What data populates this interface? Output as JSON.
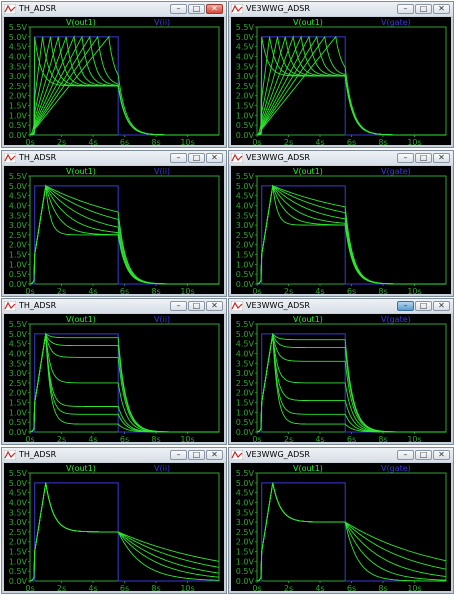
{
  "windows": [
    {
      "title": "TH_ADSR",
      "trace_a": "V(out1)",
      "trace_b": "V(ii)",
      "active": true
    },
    {
      "title": "VE3WWG_ADSR",
      "trace_a": "V(out1)",
      "trace_b": "V(gate)",
      "active": false
    },
    {
      "title": "TH_ADSR",
      "trace_a": "V(out1)",
      "trace_b": "V(ii)",
      "active": false
    },
    {
      "title": "VE3WWG_ADSR",
      "trace_a": "V(out1)",
      "trace_b": "V(gate)",
      "active": false
    },
    {
      "title": "TH_ADSR",
      "trace_a": "V(out1)",
      "trace_b": "V(ii)",
      "active": false
    },
    {
      "title": "VE3WWG_ADSR",
      "trace_a": "V(out1)",
      "trace_b": "V(gate)",
      "active": false,
      "min_highlight": true
    },
    {
      "title": "TH_ADSR",
      "trace_a": "V(out1)",
      "trace_b": "V(ii)",
      "active": false
    },
    {
      "title": "VE3WWG_ADSR",
      "trace_a": "V(out1)",
      "trace_b": "V(gate)",
      "active": false
    }
  ],
  "colors": {
    "trace": "#2ee62e",
    "gate": "#3a3ad8",
    "axis": "#31a431",
    "background": "#000000"
  },
  "chart_data": [
    {
      "type": "line",
      "xlim": [
        0,
        12
      ],
      "ylim": [
        0,
        5.5
      ],
      "x_ticks": [
        "0s",
        "2s",
        "4s",
        "6s",
        "8s",
        "10s"
      ],
      "y_ticks": [
        "0.0V",
        "0.5V",
        "1.0V",
        "1.5V",
        "2.0V",
        "2.5V",
        "3.0V",
        "3.5V",
        "4.0V",
        "4.5V",
        "5.0V",
        "5.5V"
      ],
      "sweep": "attack time",
      "gate": {
        "x": [
          0,
          0.3,
          5.6,
          12
        ],
        "high": 5.0
      },
      "attack_times": [
        0.3,
        0.8,
        1.3,
        1.8,
        2.3,
        2.8,
        3.3,
        3.8,
        4.3,
        5.0
      ],
      "decay_tc": 0.4,
      "sustain": [
        2.5
      ],
      "release_tc": 0.5
    },
    {
      "type": "line",
      "xlim": [
        0,
        12
      ],
      "ylim": [
        0,
        5.5
      ],
      "x_ticks": [
        "0s",
        "2s",
        "4s",
        "6s",
        "8s",
        "10s"
      ],
      "y_ticks": [
        "0.0V",
        "0.5V",
        "1.0V",
        "1.5V",
        "2.0V",
        "2.5V",
        "3.0V",
        "3.5V",
        "4.0V",
        "4.5V",
        "5.0V",
        "5.5V"
      ],
      "sweep": "attack time",
      "gate": {
        "x": [
          0,
          0.3,
          5.6,
          12
        ],
        "high": 5.0
      },
      "attack_times": [
        0.3,
        0.8,
        1.3,
        1.8,
        2.3,
        2.8,
        3.3,
        3.8,
        4.3,
        5.0
      ],
      "decay_tc": 0.4,
      "sustain": [
        3.0
      ],
      "release_tc": 0.5
    },
    {
      "type": "line",
      "xlim": [
        0,
        12
      ],
      "ylim": [
        0,
        5.5
      ],
      "x_ticks": [
        "0s",
        "2s",
        "4s",
        "6s",
        "8s",
        "10s"
      ],
      "y_ticks": [
        "0.0V",
        "0.5V",
        "1.0V",
        "1.5V",
        "2.0V",
        "2.5V",
        "3.0V",
        "3.5V",
        "4.0V",
        "4.5V",
        "5.0V",
        "5.5V"
      ],
      "sweep": "decay time",
      "gate": {
        "x": [
          0,
          0.3,
          5.6,
          12
        ],
        "high": 5.0
      },
      "attack_times": [
        1.0
      ],
      "decay_tcs": [
        0.3,
        0.8,
        1.5,
        2.5,
        4.0,
        6.0
      ],
      "sustain": [
        2.5
      ],
      "release_tc": 0.5
    },
    {
      "type": "line",
      "xlim": [
        0,
        12
      ],
      "ylim": [
        0,
        5.5
      ],
      "x_ticks": [
        "0s",
        "2s",
        "4s",
        "6s",
        "8s",
        "10s"
      ],
      "y_ticks": [
        "0.0V",
        "0.5V",
        "1.0V",
        "1.5V",
        "2.0V",
        "2.5V",
        "3.0V",
        "3.5V",
        "4.0V",
        "4.5V",
        "5.0V",
        "5.5V"
      ],
      "sweep": "decay time",
      "gate": {
        "x": [
          0,
          0.3,
          5.6,
          12
        ],
        "high": 5.0
      },
      "attack_times": [
        1.0
      ],
      "decay_tcs": [
        0.3,
        0.8,
        1.5,
        2.5,
        4.0,
        6.0
      ],
      "sustain": [
        3.0
      ],
      "release_tc": 0.5
    },
    {
      "type": "line",
      "xlim": [
        0,
        12
      ],
      "ylim": [
        0,
        5.5
      ],
      "x_ticks": [
        "0s",
        "2s",
        "4s",
        "6s",
        "8s",
        "10s"
      ],
      "y_ticks": [
        "0.0V",
        "0.5V",
        "1.0V",
        "1.5V",
        "2.0V",
        "2.5V",
        "3.0V",
        "3.5V",
        "4.0V",
        "4.5V",
        "5.0V",
        "5.5V"
      ],
      "sweep": "sustain level",
      "gate": {
        "x": [
          0,
          0.3,
          5.6,
          12
        ],
        "high": 5.0
      },
      "attack_times": [
        1.0
      ],
      "decay_tc": 0.3,
      "sustain": [
        4.8,
        4.4,
        3.8,
        2.5,
        1.3,
        0.9,
        0.4
      ],
      "release_tc": 0.5
    },
    {
      "type": "line",
      "xlim": [
        0,
        12
      ],
      "ylim": [
        0,
        5.5
      ],
      "x_ticks": [
        "0s",
        "2s",
        "4s",
        "6s",
        "8s",
        "10s"
      ],
      "y_ticks": [
        "0.0V",
        "0.5V",
        "1.0V",
        "1.5V",
        "2.0V",
        "2.5V",
        "3.0V",
        "3.5V",
        "4.0V",
        "4.5V",
        "5.0V",
        "5.5V"
      ],
      "sweep": "sustain level",
      "gate": {
        "x": [
          0,
          0.3,
          5.6,
          12
        ],
        "high": 5.0
      },
      "attack_times": [
        1.0
      ],
      "decay_tc": 0.3,
      "sustain": [
        4.7,
        4.3,
        3.6,
        2.5,
        1.6,
        0.9,
        0.4
      ],
      "release_tc": 0.5
    },
    {
      "type": "line",
      "xlim": [
        0,
        12
      ],
      "ylim": [
        0,
        5.5
      ],
      "x_ticks": [
        "0s",
        "2s",
        "4s",
        "6s",
        "8s",
        "10s"
      ],
      "y_ticks": [
        "0.0V",
        "0.5V",
        "1.0V",
        "1.5V",
        "2.0V",
        "2.5V",
        "3.0V",
        "3.5V",
        "4.0V",
        "4.5V",
        "5.0V",
        "5.5V"
      ],
      "sweep": "release time",
      "gate": {
        "x": [
          0,
          0.3,
          5.6,
          12
        ],
        "high": 5.0
      },
      "attack_times": [
        1.0
      ],
      "decay_tc": 0.5,
      "sustain": [
        2.5
      ],
      "release_tcs": [
        1.5,
        2.5,
        3.5,
        5.0,
        7.0
      ]
    },
    {
      "type": "line",
      "xlim": [
        0,
        12
      ],
      "ylim": [
        0,
        5.5
      ],
      "x_ticks": [
        "0s",
        "2s",
        "4s",
        "6s",
        "8s",
        "10s"
      ],
      "y_ticks": [
        "0.0V",
        "0.5V",
        "1.0V",
        "1.5V",
        "2.0V",
        "2.5V",
        "3.0V",
        "3.5V",
        "4.0V",
        "4.5V",
        "5.0V",
        "5.5V"
      ],
      "sweep": "release time",
      "gate": {
        "x": [
          0,
          0.3,
          5.6,
          12
        ],
        "high": 5.0
      },
      "attack_times": [
        1.0
      ],
      "decay_tc": 0.5,
      "sustain": [
        3.0
      ],
      "release_tcs": [
        0.8,
        1.5,
        2.5,
        4.0,
        6.0
      ]
    }
  ]
}
